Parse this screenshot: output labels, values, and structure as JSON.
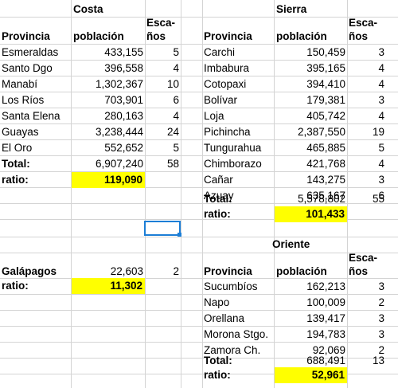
{
  "costa": {
    "title": "Costa",
    "header": {
      "provincia": "Provincia",
      "poblacion": "población",
      "escanos_1": "Esca-",
      "escanos_2": "ños"
    },
    "rows": [
      {
        "provincia": "Esmeraldas",
        "poblacion": "433,155",
        "escanos": "5"
      },
      {
        "provincia": "Santo Dgo",
        "poblacion": "396,558",
        "escanos": "4"
      },
      {
        "provincia": "Manabí",
        "poblacion": "1,302,367",
        "escanos": "10"
      },
      {
        "provincia": "Los Ríos",
        "poblacion": "703,901",
        "escanos": "6"
      },
      {
        "provincia": "Santa Elena",
        "poblacion": "280,163",
        "escanos": "4"
      },
      {
        "provincia": "Guayas",
        "poblacion": "3,238,444",
        "escanos": "24"
      },
      {
        "provincia": "El Oro",
        "poblacion": "552,652",
        "escanos": "5"
      }
    ],
    "total": {
      "label": "Total:",
      "poblacion": "6,907,240",
      "escanos": "58"
    },
    "ratio": {
      "label": "ratio:",
      "value": "119,090"
    }
  },
  "sierra": {
    "title": "Sierra",
    "header": {
      "provincia": "Provincia",
      "poblacion": "población",
      "escanos_1": "Esca-",
      "escanos_2": "ños"
    },
    "rows": [
      {
        "provincia": "Carchi",
        "poblacion": "150,459",
        "escanos": "3"
      },
      {
        "provincia": "Imbabura",
        "poblacion": "395,165",
        "escanos": "4"
      },
      {
        "provincia": "Cotopaxi",
        "poblacion": "394,410",
        "escanos": "4"
      },
      {
        "provincia": "Bolívar",
        "poblacion": "179,381",
        "escanos": "3"
      },
      {
        "provincia": "Loja",
        "poblacion": "405,742",
        "escanos": "4"
      },
      {
        "provincia": "Pichincha",
        "poblacion": "2,387,550",
        "escanos": "19"
      },
      {
        "provincia": "Tungurahua",
        "poblacion": "465,885",
        "escanos": "5"
      },
      {
        "provincia": "Chimborazo",
        "poblacion": "421,768",
        "escanos": "4"
      },
      {
        "provincia": "Cañar",
        "poblacion": "143,275",
        "escanos": "3"
      },
      {
        "provincia": "Azuay",
        "poblacion": "635,167",
        "escanos": "6"
      }
    ],
    "total": {
      "label": "Total:",
      "poblacion": "5,578,802",
      "escanos": "55"
    },
    "ratio": {
      "label": "ratio:",
      "value": "101,433"
    }
  },
  "galapagos": {
    "label": "Galápagos",
    "poblacion": "22,603",
    "escanos": "2",
    "ratio": {
      "label": "ratio:",
      "value": "11,302"
    }
  },
  "oriente": {
    "title": "Oriente",
    "header": {
      "provincia": "Provincia",
      "poblacion": "población",
      "escanos_1": "Esca-",
      "escanos_2": "ños"
    },
    "rows": [
      {
        "provincia": "Sucumbíos",
        "poblacion": "162,213",
        "escanos": "3"
      },
      {
        "provincia": "Napo",
        "poblacion": "100,009",
        "escanos": "2"
      },
      {
        "provincia": "Orellana",
        "poblacion": "139,417",
        "escanos": "3"
      },
      {
        "provincia": "Morona Stgo.",
        "poblacion": "194,783",
        "escanos": "3"
      },
      {
        "provincia": "Zamora Ch.",
        "poblacion": "92,069",
        "escanos": "2"
      }
    ],
    "total": {
      "label": "Total:",
      "poblacion": "688,491",
      "escanos": "13"
    },
    "ratio": {
      "label": "ratio:",
      "value": "52,961"
    }
  },
  "colors": {
    "highlight": "#ffff00",
    "selection": "#1c7ed6",
    "gridline": "#d4d4d4"
  }
}
